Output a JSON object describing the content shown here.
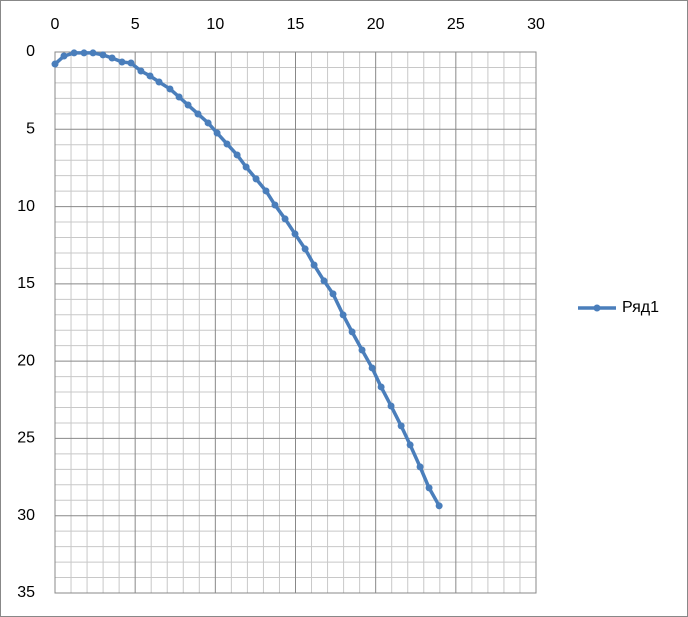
{
  "chart_data": {
    "type": "line",
    "series": [
      {
        "name": "Ряд1",
        "color": "#4a7ebb",
        "x": [
          0,
          0.56,
          1.19,
          1.81,
          2.37,
          2.99,
          3.56,
          4.18,
          4.74,
          5.36,
          5.93,
          6.49,
          7.17,
          7.74,
          8.3,
          8.92,
          9.55,
          10.11,
          10.73,
          11.36,
          11.92,
          12.54,
          13.16,
          13.72,
          14.35,
          14.97,
          15.6,
          16.16,
          16.78,
          17.34,
          17.97,
          18.53,
          19.15,
          19.78,
          20.34,
          20.96,
          21.59,
          22.15,
          22.77,
          23.33,
          23.96
        ],
        "values": [
          0.78,
          0.26,
          0.06,
          0.06,
          0.06,
          0.19,
          0.39,
          0.65,
          0.71,
          1.23,
          1.55,
          1.94,
          2.39,
          2.91,
          3.43,
          4.01,
          4.59,
          5.24,
          5.95,
          6.66,
          7.44,
          8.21,
          8.99,
          9.9,
          10.8,
          11.77,
          12.74,
          13.78,
          14.81,
          15.65,
          17.01,
          18.11,
          19.28,
          20.44,
          21.67,
          22.9,
          24.19,
          25.42,
          26.84,
          28.2,
          29.36
        ]
      }
    ],
    "xlim": [
      0,
      30
    ],
    "xticks": [
      0,
      5,
      10,
      15,
      20,
      25,
      30
    ],
    "ylim": [
      0,
      35
    ],
    "yticks": [
      0,
      5,
      10,
      15,
      20,
      25,
      30,
      35
    ],
    "y_inverted": true,
    "x_axis_position": "top",
    "grid": true,
    "minor_grid": true,
    "legend": "right",
    "markers": true
  }
}
